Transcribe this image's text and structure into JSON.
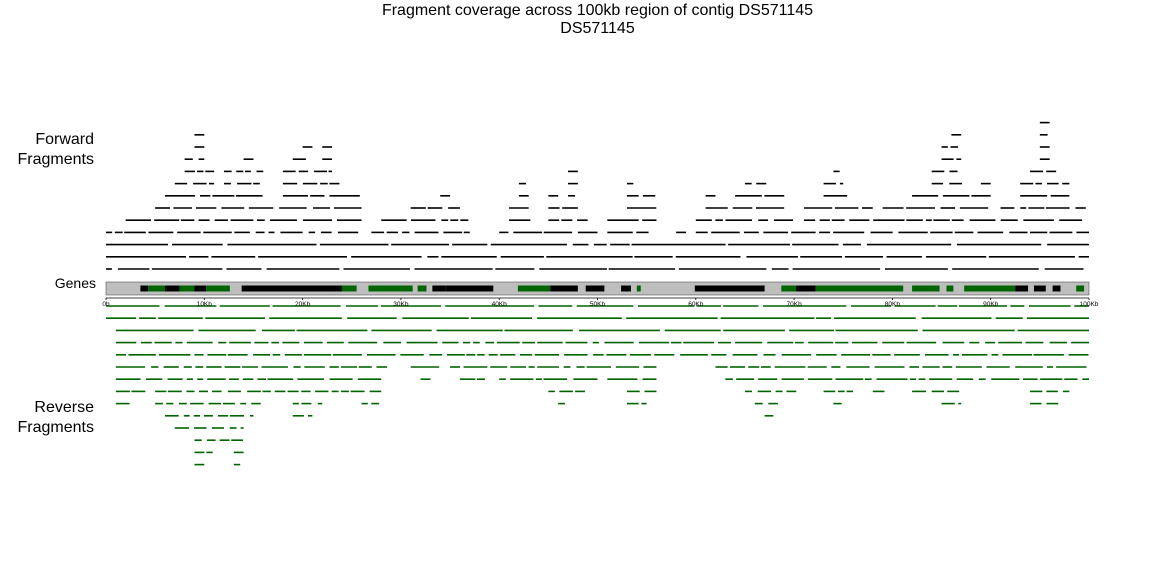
{
  "title": "Fragment coverage across 100kb region of contig DS571145",
  "subtitle": "DS571145",
  "labels": {
    "forward": [
      "Forward",
      "Fragments"
    ],
    "reverse": [
      "Reverse",
      "Fragments"
    ],
    "genes": "Genes"
  },
  "colors": {
    "forward": "#000000",
    "reverse": "#006400",
    "track_background": "#bebebe",
    "gene_forward_strand": "#000000",
    "gene_reverse_strand": "#006400"
  },
  "axis": {
    "ticks": [
      {
        "pos": 0,
        "label": "0b"
      },
      {
        "pos": 10000,
        "label": "10Kb"
      },
      {
        "pos": 20000,
        "label": "20Kb"
      },
      {
        "pos": 30000,
        "label": "30Kb"
      },
      {
        "pos": 40000,
        "label": "40Kb"
      },
      {
        "pos": 50000,
        "label": "50Kb"
      },
      {
        "pos": 60000,
        "label": "60Kb"
      },
      {
        "pos": 70000,
        "label": "70Kb"
      },
      {
        "pos": 80000,
        "label": "80Kb"
      },
      {
        "pos": 90000,
        "label": "90Kb"
      },
      {
        "pos": 100000,
        "label": "100Kb"
      }
    ]
  },
  "genes": [
    {
      "start": 3500,
      "end": 4300,
      "strand": "-"
    },
    {
      "start": 4300,
      "end": 6000,
      "strand": "+"
    },
    {
      "start": 6000,
      "end": 7500,
      "strand": "-"
    },
    {
      "start": 7500,
      "end": 9000,
      "strand": "+"
    },
    {
      "start": 9000,
      "end": 10200,
      "strand": "-"
    },
    {
      "start": 10200,
      "end": 12600,
      "strand": "+"
    },
    {
      "start": 13800,
      "end": 24000,
      "strand": "-"
    },
    {
      "start": 24000,
      "end": 25500,
      "strand": "+"
    },
    {
      "start": 26700,
      "end": 31200,
      "strand": "+"
    },
    {
      "start": 31700,
      "end": 32600,
      "strand": "+"
    },
    {
      "start": 33200,
      "end": 34500,
      "strand": "-"
    },
    {
      "start": 34500,
      "end": 39400,
      "strand": "-"
    },
    {
      "start": 41900,
      "end": 45200,
      "strand": "+"
    },
    {
      "start": 45200,
      "end": 48000,
      "strand": "-"
    },
    {
      "start": 48800,
      "end": 50700,
      "strand": "-"
    },
    {
      "start": 52400,
      "end": 53400,
      "strand": "-"
    },
    {
      "start": 54000,
      "end": 54400,
      "strand": "+"
    },
    {
      "start": 59900,
      "end": 67000,
      "strand": "-"
    },
    {
      "start": 68700,
      "end": 70200,
      "strand": "+"
    },
    {
      "start": 70200,
      "end": 72200,
      "strand": "-"
    },
    {
      "start": 72200,
      "end": 81100,
      "strand": "+"
    },
    {
      "start": 82000,
      "end": 84800,
      "strand": "+"
    },
    {
      "start": 85500,
      "end": 86200,
      "strand": "+"
    },
    {
      "start": 87300,
      "end": 91500,
      "strand": "+"
    },
    {
      "start": 91500,
      "end": 92500,
      "strand": "+"
    },
    {
      "start": 92500,
      "end": 93800,
      "strand": "-"
    },
    {
      "start": 94400,
      "end": 95600,
      "strand": "-"
    },
    {
      "start": 96300,
      "end": 97100,
      "strand": "-"
    },
    {
      "start": 98700,
      "end": 99500,
      "strand": "+"
    }
  ],
  "coverage_depth": {
    "bin_size_bp": 1000,
    "forward": [
      4,
      4,
      5,
      5,
      5,
      6,
      7,
      8,
      10,
      12,
      9,
      7,
      9,
      9,
      10,
      9,
      6,
      6,
      9,
      10,
      11,
      9,
      11,
      8,
      7,
      7,
      3,
      4,
      5,
      5,
      5,
      6,
      6,
      6,
      7,
      6,
      5,
      3,
      3,
      3,
      4,
      6,
      8,
      5,
      4,
      7,
      6,
      9,
      5,
      4,
      3,
      5,
      5,
      8,
      7,
      7,
      3,
      3,
      4,
      3,
      5,
      7,
      6,
      6,
      7,
      8,
      8,
      8,
      7,
      5,
      4,
      6,
      6,
      8,
      9,
      7,
      6,
      6,
      5,
      6,
      6,
      6,
      7,
      7,
      9,
      11,
      12,
      8,
      7,
      8,
      5,
      6,
      6,
      8,
      9,
      13,
      9,
      8,
      6,
      6
    ],
    "reverse": [
      2,
      9,
      9,
      8,
      7,
      9,
      10,
      11,
      11,
      14,
      13,
      12,
      12,
      14,
      10,
      9,
      8,
      8,
      8,
      10,
      10,
      9,
      8,
      8,
      8,
      8,
      9,
      9,
      6,
      5,
      5,
      6,
      7,
      6,
      5,
      6,
      7,
      7,
      7,
      6,
      7,
      7,
      7,
      7,
      7,
      8,
      9,
      8,
      8,
      7,
      6,
      7,
      7,
      9,
      9,
      8,
      5,
      5,
      5,
      5,
      5,
      5,
      6,
      7,
      7,
      8,
      9,
      10,
      9,
      8,
      8,
      7,
      7,
      8,
      9,
      8,
      7,
      7,
      8,
      8,
      7,
      7,
      8,
      8,
      8,
      9,
      9,
      7,
      7,
      7,
      7,
      7,
      7,
      7,
      9,
      9,
      9,
      8,
      7,
      7
    ]
  }
}
